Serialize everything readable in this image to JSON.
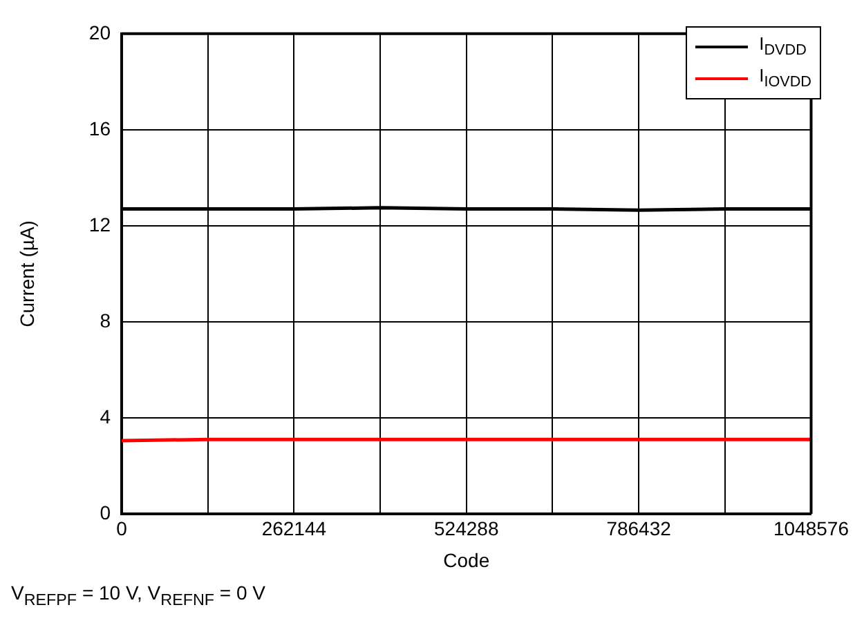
{
  "chart_data": {
    "type": "line",
    "xlabel": "Code",
    "ylabel": "Current (µA)",
    "annotations": [
      "V$_{REFPF}$ = 10 V, V$_{REFNF}$ = 0 V"
    ],
    "x": [
      0,
      131072,
      262144,
      393216,
      524288,
      655360,
      786432,
      917504,
      1048576
    ],
    "series": [
      {
        "name": "I$_{DVDD}$",
        "color": "#000000",
        "values": [
          12.7,
          12.7,
          12.7,
          12.75,
          12.7,
          12.7,
          12.65,
          12.7,
          12.7
        ]
      },
      {
        "name": "I$_{IOVDD}$",
        "color": "#ff0000",
        "values": [
          3.05,
          3.1,
          3.1,
          3.1,
          3.1,
          3.1,
          3.1,
          3.1,
          3.1
        ]
      }
    ],
    "xlim": [
      0,
      1048576
    ],
    "xticks": [
      0,
      {
        "value": 131072,
        "label": null
      },
      262144,
      {
        "value": 393216,
        "label": null
      },
      524288,
      {
        "value": 655360,
        "label": null
      },
      786432,
      {
        "value": 917504,
        "label": null
      },
      1048576
    ],
    "ylim": [
      0,
      20
    ],
    "yticks": [
      0,
      4,
      8,
      12,
      16,
      20
    ],
    "grid": true,
    "legend": "top right",
    "marker": "none",
    "line_style": "solid"
  }
}
